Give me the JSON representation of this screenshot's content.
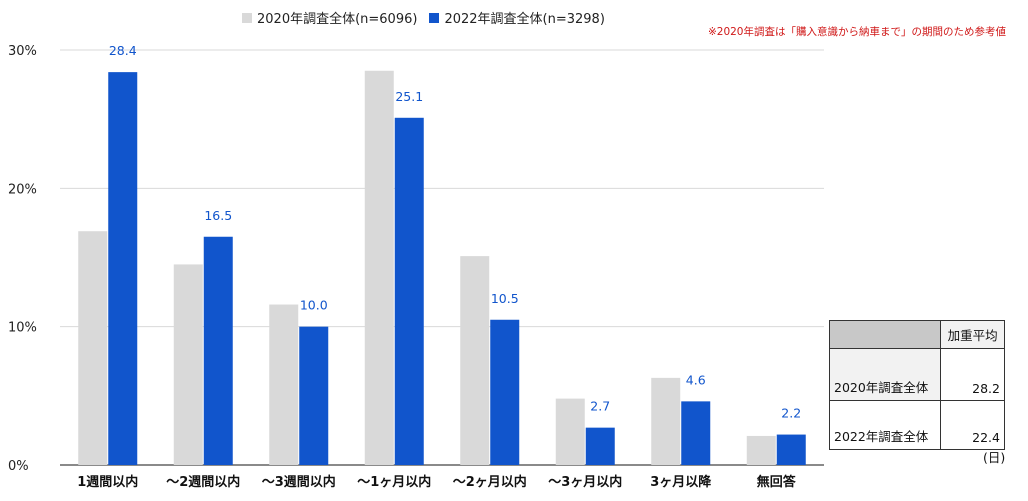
{
  "chart_data": {
    "type": "bar",
    "categories": [
      "1週間以内",
      "～2週間以内",
      "～3週間以内",
      "～1ヶ月以内",
      "～2ヶ月以内",
      "～3ヶ月以内",
      "3ヶ月以降",
      "無回答"
    ],
    "series": [
      {
        "name": "2020年調査全体(n=6096)",
        "color": "#d9d9d9",
        "values": [
          16.9,
          14.5,
          11.6,
          28.5,
          15.1,
          4.8,
          6.3,
          2.1
        ],
        "labels": []
      },
      {
        "name": "2022年調査全体(n=3298)",
        "color": "#1155cc",
        "values": [
          28.4,
          16.5,
          10.0,
          25.1,
          10.5,
          2.7,
          4.6,
          2.2
        ],
        "labels": [
          "28.4",
          "16.5",
          "10.0",
          "25.1",
          "10.5",
          "2.7",
          "4.6",
          "2.2"
        ]
      }
    ],
    "ylim": [
      0,
      30
    ],
    "yticks": [
      "0%",
      "10%",
      "20%",
      "30%"
    ],
    "ytick_values": [
      0,
      10,
      20,
      30
    ],
    "grid": true,
    "legend": "top",
    "label_color": "#1155cc",
    "note": "※2020年調査は「購入意識から納車まで」の期間のため参考値"
  },
  "avg_table": {
    "header": "加重平均",
    "rows": [
      {
        "label": "2020年調査全体",
        "value": "28.2"
      },
      {
        "label": "2022年調査全体",
        "value": "22.4"
      }
    ],
    "unit": "(日)"
  }
}
